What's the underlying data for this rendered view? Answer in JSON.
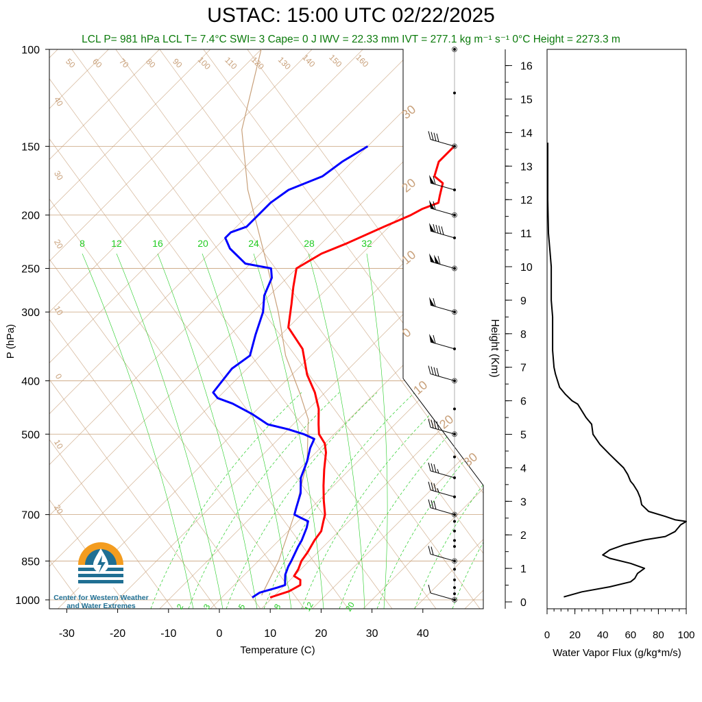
{
  "title": "USTAC: 15:00 UTC 02/22/2025",
  "subtitle": "LCL P= 981 hPa  LCL T= 7.4°C  SWI= 3  Cape= 0 J  IWV = 22.33 mm  IVT = 277.1 kg m⁻¹ s⁻¹  0°C Height = 2273.3 m",
  "logo": {
    "line1": "Center for Western Weather",
    "line2": "and Water Extremes"
  },
  "colors": {
    "temperature": "#ff0000",
    "dewpoint": "#0000ff",
    "isotherm": "#c8a07a",
    "mixing_ratio": "#22cc22",
    "flux": "#000000",
    "subtitle": "#0a7a0a"
  },
  "chart_data": [
    {
      "type": "line",
      "title": "USTAC: 15:00 UTC 02/22/2025",
      "xlabel": "Temperature (C)",
      "ylabel": "P (hPa)",
      "pressure_ticks": [
        100,
        150,
        200,
        250,
        300,
        400,
        500,
        700,
        850,
        1000
      ],
      "temperature_ticks": [
        -30,
        -20,
        -10,
        0,
        10,
        20,
        30,
        40
      ],
      "xlim": [
        -33,
        52
      ],
      "ylim": [
        1050,
        100
      ],
      "isotherm_labels": [
        "50",
        "60",
        "70",
        "80",
        "90",
        "100",
        "110",
        "120",
        "130",
        "140",
        "150",
        "160"
      ],
      "adiabat_labels_left": [
        "40",
        "30",
        "20",
        "10",
        "0",
        "10",
        "20"
      ],
      "adiabat_labels_right": [
        "30",
        "20",
        "10",
        "0",
        "10",
        "20",
        "30"
      ],
      "mixing_ratio_labels": [
        "8",
        "12",
        "16",
        "20",
        "24",
        "28",
        "32"
      ],
      "mixing_ratio_bottom_labels": [
        "2",
        "3",
        "5",
        "8",
        "12",
        "20"
      ],
      "series": [
        {
          "name": "Temperature",
          "points": [
            [
              9.5,
              990
            ],
            [
              12,
              965
            ],
            [
              13,
              940
            ],
            [
              12,
              920
            ],
            [
              10,
              905
            ],
            [
              9.5,
              880
            ],
            [
              8.5,
              850
            ],
            [
              8,
              820
            ],
            [
              7,
              780
            ],
            [
              6.5,
              750
            ],
            [
              5,
              720
            ],
            [
              4,
              700
            ],
            [
              1,
              660
            ],
            [
              -2,
              620
            ],
            [
              -5,
              580
            ],
            [
              -8,
              540
            ],
            [
              -10,
              520
            ],
            [
              -13,
              500
            ],
            [
              -15,
              480
            ],
            [
              -18,
              450
            ],
            [
              -22,
              420
            ],
            [
              -27,
              390
            ],
            [
              -33,
              350
            ],
            [
              -40,
              320
            ],
            [
              -44,
              290
            ],
            [
              -47,
              270
            ],
            [
              -50,
              250
            ],
            [
              -48,
              235
            ],
            [
              -45,
              225
            ],
            [
              -41,
              210
            ],
            [
              -38,
              200
            ],
            [
              -37,
              195
            ],
            [
              -35,
              190
            ],
            [
              -36,
              185
            ],
            [
              -37,
              180
            ],
            [
              -38,
              175
            ],
            [
              -41,
              170
            ],
            [
              -43,
              160
            ],
            [
              -43,
              150
            ]
          ]
        },
        {
          "name": "Dewpoint",
          "points": [
            [
              6,
              990
            ],
            [
              6.5,
              970
            ],
            [
              9,
              950
            ],
            [
              10,
              940
            ],
            [
              9,
              920
            ],
            [
              8,
              900
            ],
            [
              7,
              870
            ],
            [
              6.5,
              850
            ],
            [
              5,
              800
            ],
            [
              4.5,
              780
            ],
            [
              3,
              740
            ],
            [
              2,
              720
            ],
            [
              0,
              710
            ],
            [
              -2,
              700
            ],
            [
              -3,
              680
            ],
            [
              -5,
              640
            ],
            [
              -8,
              600
            ],
            [
              -10,
              560
            ],
            [
              -12,
              530
            ],
            [
              -13,
              510
            ],
            [
              -16,
              500
            ],
            [
              -20,
              490
            ],
            [
              -25,
              480
            ],
            [
              -30,
              460
            ],
            [
              -36,
              440
            ],
            [
              -40,
              430
            ],
            [
              -42,
              420
            ],
            [
              -43,
              380
            ],
            [
              -42,
              360
            ],
            [
              -45,
              330
            ],
            [
              -48,
              300
            ],
            [
              -51,
              280
            ],
            [
              -53,
              260
            ],
            [
              -55,
              250
            ],
            [
              -61,
              245
            ],
            [
              -67,
              230
            ],
            [
              -70,
              220
            ],
            [
              -70,
              215
            ],
            [
              -68,
              210
            ],
            [
              -68,
              200
            ],
            [
              -68,
              190
            ],
            [
              -67,
              180
            ],
            [
              -63,
              170
            ],
            [
              -62,
              160
            ],
            [
              -60,
              150
            ]
          ]
        }
      ],
      "parcel_points": [
        [
          7.4,
          981
        ],
        [
          4,
          850
        ],
        [
          -2,
          700
        ],
        [
          -10,
          560
        ],
        [
          -18,
          470
        ],
        [
          -25,
          420
        ],
        [
          -35,
          360
        ],
        [
          -45,
          300
        ],
        [
          -58,
          240
        ],
        [
          -75,
          180
        ],
        [
          -88,
          140
        ],
        [
          -100,
          100
        ]
      ],
      "wind_barbs": [
        {
          "p": 1000,
          "speed": 10
        },
        {
          "p": 850,
          "speed": 20
        },
        {
          "p": 700,
          "speed": 30
        },
        {
          "p": 650,
          "speed": 35
        },
        {
          "p": 600,
          "speed": 35
        },
        {
          "p": 500,
          "speed": 40
        },
        {
          "p": 400,
          "speed": 40
        },
        {
          "p": 350,
          "speed": 60
        },
        {
          "p": 300,
          "speed": 60
        },
        {
          "p": 250,
          "speed": 110
        },
        {
          "p": 220,
          "speed": 90
        },
        {
          "p": 200,
          "speed": 60
        },
        {
          "p": 180,
          "speed": 60
        },
        {
          "p": 150,
          "speed": 40
        }
      ]
    },
    {
      "type": "line",
      "xlabel": "Water Vapor Flux (g/kg*m/s)",
      "ylabel": "Height (Km)",
      "xlim": [
        0,
        100
      ],
      "ylim": [
        0,
        16.5
      ],
      "x_ticks": [
        0,
        20,
        40,
        60,
        80,
        100
      ],
      "y_ticks": [
        0,
        1,
        2,
        3,
        4,
        5,
        6,
        7,
        8,
        9,
        10,
        11,
        12,
        13,
        14,
        15,
        16
      ],
      "series": [
        {
          "name": "Water Vapor Flux",
          "points": [
            [
              12,
              0.15
            ],
            [
              25,
              0.3
            ],
            [
              45,
              0.45
            ],
            [
              60,
              0.6
            ],
            [
              63,
              0.7
            ],
            [
              65,
              0.85
            ],
            [
              70,
              1.0
            ],
            [
              60,
              1.15
            ],
            [
              45,
              1.3
            ],
            [
              40,
              1.4
            ],
            [
              45,
              1.55
            ],
            [
              55,
              1.7
            ],
            [
              70,
              1.85
            ],
            [
              85,
              1.95
            ],
            [
              92,
              2.1
            ],
            [
              96,
              2.3
            ],
            [
              100,
              2.4
            ],
            [
              92,
              2.45
            ],
            [
              85,
              2.55
            ],
            [
              73,
              2.7
            ],
            [
              68,
              2.9
            ],
            [
              67,
              3.1
            ],
            [
              65,
              3.3
            ],
            [
              62,
              3.5
            ],
            [
              60,
              3.6
            ],
            [
              58,
              3.8
            ],
            [
              55,
              4.0
            ],
            [
              50,
              4.2
            ],
            [
              45,
              4.4
            ],
            [
              38,
              4.7
            ],
            [
              33,
              5.0
            ],
            [
              32,
              5.3
            ],
            [
              28,
              5.5
            ],
            [
              25,
              5.7
            ],
            [
              22,
              5.9
            ],
            [
              18,
              6.0
            ],
            [
              13,
              6.2
            ],
            [
              9,
              6.4
            ],
            [
              6,
              6.8
            ],
            [
              5,
              7.0
            ],
            [
              4,
              7.5
            ],
            [
              4,
              8.0
            ],
            [
              4,
              8.5
            ],
            [
              3,
              9.0
            ],
            [
              3,
              9.5
            ],
            [
              3,
              10.0
            ],
            [
              2,
              10.5
            ],
            [
              1,
              11.0
            ],
            [
              0.5,
              12
            ],
            [
              0.5,
              13
            ],
            [
              0.5,
              13.7
            ]
          ]
        }
      ]
    }
  ]
}
